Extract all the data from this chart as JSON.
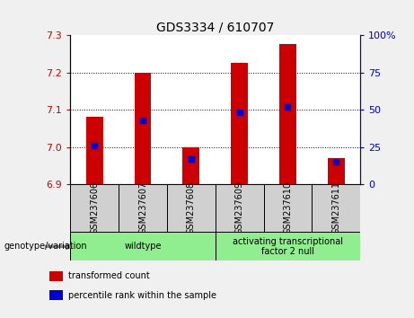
{
  "title": "GDS3334 / 610707",
  "samples": [
    "GSM237606",
    "GSM237607",
    "GSM237608",
    "GSM237609",
    "GSM237610",
    "GSM237611"
  ],
  "bar_base": 6.9,
  "bar_tops": [
    7.08,
    7.2,
    7.0,
    7.225,
    7.275,
    6.97
  ],
  "percentile_values": [
    26,
    43,
    17,
    48,
    52,
    15
  ],
  "ylim_left": [
    6.9,
    7.3
  ],
  "ylim_right": [
    0,
    100
  ],
  "yticks_left": [
    6.9,
    7.0,
    7.1,
    7.2,
    7.3
  ],
  "yticks_right": [
    0,
    25,
    50,
    75,
    100
  ],
  "ytick_labels_right": [
    "0",
    "25",
    "50",
    "75",
    "100%"
  ],
  "grid_lines": [
    7.0,
    7.1,
    7.2
  ],
  "bar_color": "#cc0000",
  "percentile_color": "#0000cc",
  "bar_width": 0.35,
  "genotype_groups": [
    {
      "label": "wildtype",
      "start": 0,
      "end": 2,
      "color": "#90ee90"
    },
    {
      "label": "activating transcriptional\nfactor 2 null",
      "start": 3,
      "end": 5,
      "color": "#90ee90"
    }
  ],
  "legend_items": [
    {
      "label": "transformed count",
      "color": "#cc0000"
    },
    {
      "label": "percentile rank within the sample",
      "color": "#0000cc"
    }
  ],
  "axis_color_left": "#cc0000",
  "axis_color_right": "#0000cc",
  "bg_color": "#f0f0f0",
  "plot_bg": "#ffffff",
  "genotype_label": "genotype/variation",
  "title_fontsize": 10,
  "tick_fontsize": 8,
  "label_fontsize": 7,
  "legend_fontsize": 7
}
